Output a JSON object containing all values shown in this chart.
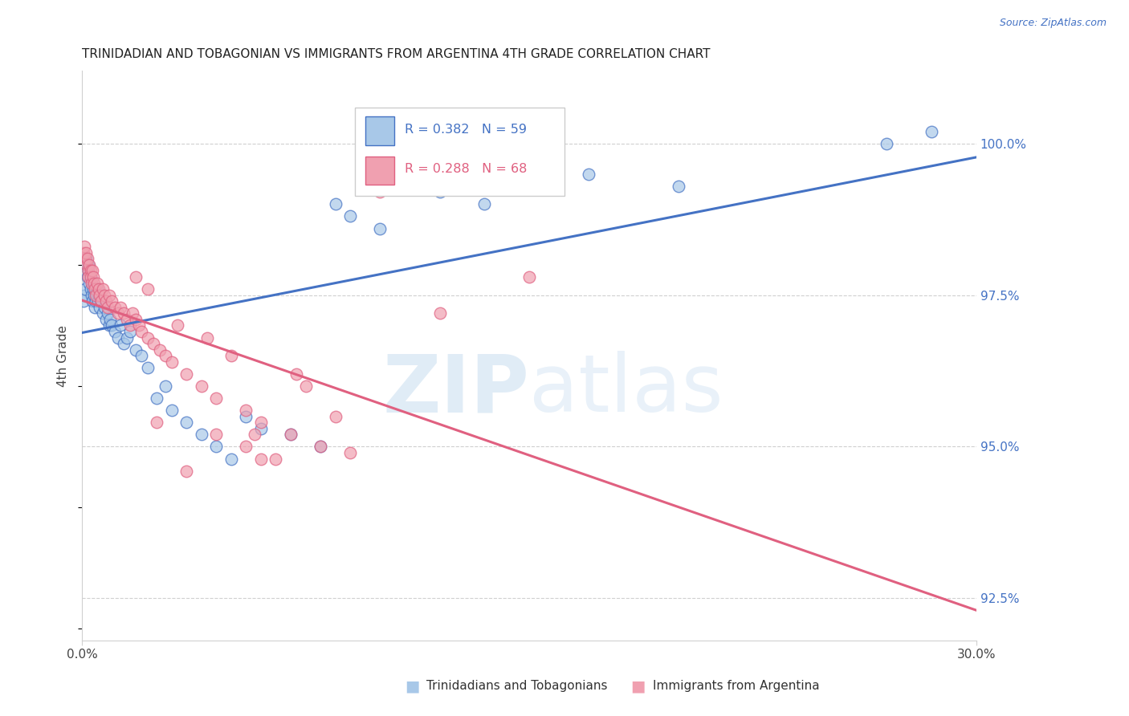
{
  "title": "TRINIDADIAN AND TOBAGONIAN VS IMMIGRANTS FROM ARGENTINA 4TH GRADE CORRELATION CHART",
  "source": "Source: ZipAtlas.com",
  "ylabel": "4th Grade",
  "ylabel_tick_vals": [
    92.5,
    95.0,
    97.5,
    100.0
  ],
  "xmin": 0.0,
  "xmax": 30.0,
  "ymin": 91.8,
  "ymax": 101.2,
  "color_blue": "#a8c8e8",
  "color_pink": "#f0a0b0",
  "line_color_blue": "#4472c4",
  "line_color_pink": "#e06080",
  "legend_label1": "Trinidadians and Tobagonians",
  "legend_label2": "Immigrants from Argentina",
  "blue_x": [
    0.05,
    0.08,
    0.1,
    0.12,
    0.15,
    0.18,
    0.2,
    0.22,
    0.25,
    0.28,
    0.3,
    0.32,
    0.35,
    0.38,
    0.4,
    0.42,
    0.45,
    0.48,
    0.5,
    0.52,
    0.55,
    0.6,
    0.65,
    0.7,
    0.75,
    0.8,
    0.85,
    0.9,
    0.95,
    1.0,
    1.1,
    1.2,
    1.3,
    1.4,
    1.5,
    1.6,
    1.8,
    2.0,
    2.2,
    2.5,
    2.8,
    3.0,
    3.5,
    4.0,
    4.5,
    5.0,
    5.5,
    6.0,
    7.0,
    8.0,
    8.5,
    9.0,
    10.0,
    12.0,
    13.5,
    17.0,
    20.0,
    27.0,
    28.5
  ],
  "blue_y": [
    97.4,
    97.5,
    97.6,
    98.1,
    98.0,
    97.8,
    97.9,
    98.0,
    97.7,
    97.6,
    97.8,
    97.5,
    97.4,
    97.6,
    97.5,
    97.3,
    97.4,
    97.5,
    97.6,
    97.4,
    97.5,
    97.3,
    97.4,
    97.2,
    97.3,
    97.1,
    97.2,
    97.0,
    97.1,
    97.0,
    96.9,
    96.8,
    97.0,
    96.7,
    96.8,
    96.9,
    96.6,
    96.5,
    96.3,
    95.8,
    96.0,
    95.6,
    95.4,
    95.2,
    95.0,
    94.8,
    95.5,
    95.3,
    95.2,
    95.0,
    99.0,
    98.8,
    98.6,
    99.2,
    99.0,
    99.5,
    99.3,
    100.0,
    100.2
  ],
  "pink_x": [
    0.05,
    0.08,
    0.1,
    0.12,
    0.15,
    0.18,
    0.2,
    0.22,
    0.25,
    0.28,
    0.3,
    0.32,
    0.35,
    0.38,
    0.4,
    0.42,
    0.45,
    0.5,
    0.55,
    0.6,
    0.65,
    0.7,
    0.75,
    0.8,
    0.85,
    0.9,
    1.0,
    1.1,
    1.2,
    1.3,
    1.4,
    1.5,
    1.6,
    1.7,
    1.8,
    1.9,
    2.0,
    2.2,
    2.4,
    2.6,
    2.8,
    3.0,
    3.5,
    4.0,
    4.5,
    5.0,
    5.5,
    6.0,
    7.0,
    8.0,
    9.0,
    10.0,
    4.5,
    6.0,
    8.5,
    12.0,
    15.0,
    3.5,
    6.5,
    2.5,
    5.5,
    7.5,
    1.8,
    2.2,
    4.2,
    5.8,
    7.2,
    3.2
  ],
  "pink_y": [
    98.2,
    98.3,
    98.1,
    98.2,
    98.0,
    98.1,
    97.9,
    97.8,
    98.0,
    97.9,
    97.8,
    97.7,
    97.9,
    97.8,
    97.7,
    97.6,
    97.5,
    97.7,
    97.6,
    97.5,
    97.4,
    97.6,
    97.5,
    97.4,
    97.3,
    97.5,
    97.4,
    97.3,
    97.2,
    97.3,
    97.2,
    97.1,
    97.0,
    97.2,
    97.1,
    97.0,
    96.9,
    96.8,
    96.7,
    96.6,
    96.5,
    96.4,
    96.2,
    96.0,
    95.8,
    96.5,
    95.6,
    95.4,
    95.2,
    95.0,
    94.9,
    99.2,
    95.2,
    94.8,
    95.5,
    97.2,
    97.8,
    94.6,
    94.8,
    95.4,
    95.0,
    96.0,
    97.8,
    97.6,
    96.8,
    95.2,
    96.2,
    97.0
  ]
}
